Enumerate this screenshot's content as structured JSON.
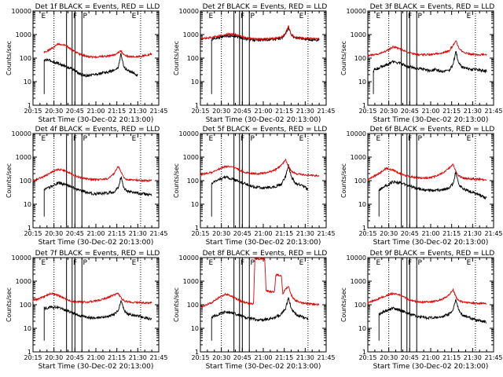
{
  "figure": {
    "xlabel": "Start Time (30-Dec-02 20:13:00)",
    "ylabel": "Counts/sec",
    "xtick_labels": [
      "20:15",
      "20:30",
      "20:45",
      "21:00",
      "21:15",
      "21:30",
      "21:45"
    ],
    "ytick_labels": [
      "1",
      "10",
      "100",
      "1000",
      "10000"
    ],
    "legend_text": "BLACK = Events, RED = LLD",
    "marker_labels": [
      "E",
      "F",
      "P",
      "E"
    ],
    "colors": {
      "events": "#000000",
      "lld": "#e00000",
      "axes": "#000000",
      "background": "#ffffff"
    }
  },
  "chart_data": [
    {
      "type": "line",
      "title": "Det 1f",
      "xlim_min": [
        2,
        92
      ],
      "ylim_log10": [
        0,
        4
      ],
      "markers_min": {
        "dotted": [
          17,
          79
        ],
        "solid": [
          26,
          30,
          32,
          37
        ]
      },
      "series": [
        {
          "name": "Events",
          "start": 10,
          "end": 77,
          "x": [
            10,
            12,
            15,
            20,
            25,
            30,
            35,
            40,
            45,
            50,
            55,
            60,
            63,
            65,
            67,
            70,
            73,
            75,
            77
          ],
          "y": [
            80,
            85,
            75,
            60,
            45,
            35,
            22,
            18,
            20,
            22,
            25,
            30,
            40,
            160,
            40,
            30,
            25,
            22,
            18
          ]
        },
        {
          "name": "LLD",
          "start": 10,
          "end": 87,
          "x": [
            10,
            15,
            20,
            25,
            30,
            35,
            40,
            45,
            50,
            55,
            60,
            63,
            65,
            67,
            70,
            75,
            80,
            87
          ],
          "y": [
            180,
            250,
            400,
            350,
            220,
            150,
            120,
            110,
            115,
            120,
            135,
            170,
            200,
            140,
            120,
            115,
            120,
            150
          ]
        }
      ]
    },
    {
      "type": "line",
      "title": "Det 2f",
      "xlim_min": [
        2,
        92
      ],
      "ylim_log10": [
        0,
        4
      ],
      "markers_min": {
        "dotted": [
          17,
          79
        ],
        "solid": [
          26,
          30,
          32,
          37
        ]
      },
      "series": [
        {
          "name": "Events",
          "start": 10,
          "end": 87,
          "x": [
            10,
            20,
            25,
            30,
            35,
            40,
            45,
            50,
            55,
            60,
            63,
            65,
            67,
            70,
            75,
            80,
            87
          ],
          "y": [
            650,
            850,
            900,
            750,
            650,
            600,
            600,
            600,
            620,
            700,
            1100,
            2100,
            900,
            700,
            650,
            620,
            600
          ]
        },
        {
          "name": "LLD",
          "start": 2,
          "end": 87,
          "x": [
            2,
            10,
            20,
            25,
            30,
            35,
            40,
            45,
            50,
            55,
            60,
            63,
            65,
            67,
            70,
            75,
            80,
            87
          ],
          "y": [
            650,
            750,
            1000,
            1050,
            900,
            700,
            650,
            640,
            650,
            680,
            750,
            1150,
            2300,
            1000,
            750,
            700,
            680,
            650
          ]
        }
      ]
    },
    {
      "type": "line",
      "title": "Det 3f",
      "xlim_min": [
        2,
        92
      ],
      "ylim_log10": [
        0,
        4
      ],
      "markers_min": {
        "dotted": [
          17,
          79
        ],
        "solid": [
          26,
          30,
          32,
          37
        ]
      },
      "series": [
        {
          "name": "Events",
          "start": 6,
          "end": 87,
          "x": [
            6,
            10,
            15,
            20,
            25,
            30,
            35,
            40,
            45,
            50,
            55,
            60,
            63,
            65,
            67,
            70,
            75,
            80,
            87
          ],
          "y": [
            30,
            40,
            50,
            70,
            60,
            45,
            38,
            35,
            30,
            32,
            28,
            30,
            50,
            200,
            60,
            40,
            35,
            32,
            28
          ]
        },
        {
          "name": "LLD",
          "start": 2,
          "end": 87,
          "x": [
            2,
            10,
            15,
            20,
            25,
            30,
            35,
            40,
            45,
            50,
            55,
            60,
            63,
            65,
            67,
            70,
            75,
            80,
            87
          ],
          "y": [
            130,
            150,
            200,
            300,
            250,
            180,
            150,
            140,
            140,
            150,
            165,
            200,
            350,
            550,
            280,
            180,
            150,
            140,
            140
          ]
        }
      ]
    },
    {
      "type": "line",
      "title": "Det 4f",
      "xlim_min": [
        2,
        92
      ],
      "ylim_log10": [
        0,
        4
      ],
      "markers_min": {
        "dotted": [
          17,
          79
        ],
        "solid": [
          26,
          30,
          32,
          37
        ]
      },
      "series": [
        {
          "name": "Events",
          "start": 10,
          "end": 87,
          "x": [
            10,
            15,
            20,
            25,
            30,
            35,
            40,
            45,
            50,
            55,
            60,
            63,
            65,
            67,
            70,
            75,
            80,
            87
          ],
          "y": [
            40,
            55,
            80,
            70,
            55,
            40,
            32,
            28,
            28,
            30,
            33,
            50,
            150,
            50,
            35,
            30,
            28,
            25
          ]
        },
        {
          "name": "LLD",
          "start": 2,
          "end": 87,
          "x": [
            2,
            10,
            15,
            20,
            25,
            30,
            35,
            40,
            45,
            50,
            55,
            60,
            63,
            65,
            67,
            70,
            75,
            80,
            87
          ],
          "y": [
            100,
            150,
            220,
            300,
            270,
            180,
            140,
            120,
            110,
            110,
            120,
            200,
            400,
            250,
            130,
            110,
            105,
            100,
            100
          ]
        }
      ]
    },
    {
      "type": "line",
      "title": "Det 5f",
      "xlim_min": [
        2,
        92
      ],
      "ylim_log10": [
        0,
        4
      ],
      "markers_min": {
        "dotted": [
          17,
          79
        ],
        "solid": [
          26,
          30,
          32,
          37
        ]
      },
      "series": [
        {
          "name": "Events",
          "start": 10,
          "end": 79,
          "x": [
            10,
            15,
            20,
            25,
            30,
            35,
            40,
            45,
            50,
            55,
            60,
            63,
            65,
            67,
            70,
            75,
            79
          ],
          "y": [
            80,
            110,
            140,
            120,
            90,
            70,
            55,
            50,
            50,
            55,
            70,
            150,
            450,
            150,
            80,
            60,
            45
          ]
        },
        {
          "name": "LLD",
          "start": 2,
          "end": 87,
          "x": [
            2,
            10,
            15,
            20,
            25,
            30,
            35,
            40,
            45,
            50,
            55,
            60,
            63,
            65,
            67,
            70,
            75,
            80,
            87
          ],
          "y": [
            180,
            220,
            300,
            400,
            380,
            280,
            220,
            200,
            200,
            220,
            280,
            450,
            750,
            400,
            250,
            200,
            180,
            170,
            160
          ]
        }
      ]
    },
    {
      "type": "line",
      "title": "Det 6f",
      "xlim_min": [
        2,
        92
      ],
      "ylim_log10": [
        0,
        4
      ],
      "markers_min": {
        "dotted": [
          17,
          79
        ],
        "solid": [
          26,
          30,
          32,
          37
        ]
      },
      "series": [
        {
          "name": "Events",
          "start": 10,
          "end": 87,
          "x": [
            10,
            15,
            20,
            25,
            30,
            35,
            40,
            45,
            50,
            55,
            60,
            63,
            65,
            67,
            70,
            75,
            80,
            87
          ],
          "y": [
            40,
            60,
            90,
            80,
            65,
            50,
            42,
            38,
            38,
            40,
            50,
            70,
            250,
            70,
            45,
            35,
            28,
            18
          ]
        },
        {
          "name": "LLD",
          "start": 2,
          "end": 87,
          "x": [
            2,
            10,
            15,
            20,
            25,
            30,
            35,
            40,
            45,
            50,
            55,
            60,
            63,
            65,
            67,
            70,
            75,
            80,
            87
          ],
          "y": [
            110,
            200,
            330,
            280,
            200,
            160,
            140,
            130,
            130,
            150,
            200,
            330,
            500,
            250,
            160,
            130,
            120,
            115,
            110
          ]
        }
      ]
    },
    {
      "type": "line",
      "title": "Det 7f",
      "xlim_min": [
        2,
        92
      ],
      "ylim_log10": [
        0,
        4
      ],
      "markers_min": {
        "dotted": [
          17,
          79
        ],
        "solid": [
          26,
          30,
          32,
          37
        ]
      },
      "series": [
        {
          "name": "Events",
          "start": 10,
          "end": 87,
          "x": [
            10,
            15,
            20,
            25,
            30,
            35,
            40,
            45,
            50,
            55,
            60,
            63,
            65,
            67,
            70,
            75,
            80,
            87
          ],
          "y": [
            70,
            80,
            75,
            60,
            45,
            35,
            30,
            28,
            28,
            30,
            40,
            60,
            150,
            60,
            40,
            35,
            30,
            25
          ]
        },
        {
          "name": "LLD",
          "start": 2,
          "end": 87,
          "x": [
            2,
            10,
            15,
            20,
            25,
            30,
            35,
            40,
            45,
            50,
            55,
            60,
            63,
            65,
            67,
            70,
            75,
            80,
            87
          ],
          "y": [
            150,
            220,
            300,
            250,
            180,
            140,
            130,
            130,
            140,
            160,
            200,
            260,
            300,
            200,
            150,
            130,
            125,
            120,
            120
          ]
        }
      ]
    },
    {
      "type": "line",
      "title": "Det 8f",
      "xlim_min": [
        2,
        92
      ],
      "ylim_log10": [
        0,
        4
      ],
      "markers_min": {
        "dotted": [
          17,
          79
        ],
        "solid": [
          26,
          30,
          32,
          37
        ]
      },
      "series": [
        {
          "name": "Events",
          "start": 10,
          "end": 79,
          "x": [
            10,
            15,
            20,
            25,
            30,
            35,
            40,
            45,
            50,
            55,
            60,
            63,
            65,
            67,
            70,
            75,
            79
          ],
          "y": [
            30,
            40,
            50,
            45,
            35,
            28,
            25,
            22,
            25,
            28,
            40,
            70,
            200,
            70,
            40,
            30,
            25
          ]
        },
        {
          "name": "LLD",
          "start": 2,
          "end": 87,
          "x": [
            2,
            10,
            15,
            20,
            25,
            30,
            35,
            40,
            41,
            45,
            48,
            49,
            52,
            55,
            56,
            58,
            60,
            61,
            63,
            65,
            67,
            70,
            75,
            80,
            87
          ],
          "y": [
            80,
            120,
            200,
            280,
            220,
            150,
            120,
            110,
            9000,
            9000,
            9000,
            400,
            350,
            350,
            1800,
            1800,
            1600,
            300,
            450,
            600,
            250,
            150,
            120,
            110,
            100
          ]
        }
      ]
    },
    {
      "type": "line",
      "title": "Det 9f",
      "xlim_min": [
        2,
        92
      ],
      "ylim_log10": [
        0,
        4
      ],
      "markers_min": {
        "dotted": [
          17,
          79
        ],
        "solid": [
          26,
          30,
          32,
          37
        ]
      },
      "series": [
        {
          "name": "Events",
          "start": 10,
          "end": 87,
          "x": [
            10,
            15,
            20,
            25,
            30,
            35,
            40,
            45,
            50,
            55,
            60,
            63,
            65,
            67,
            70,
            75,
            80,
            87
          ],
          "y": [
            40,
            55,
            70,
            60,
            45,
            35,
            30,
            28,
            28,
            30,
            40,
            60,
            180,
            60,
            35,
            28,
            22,
            18
          ]
        },
        {
          "name": "LLD",
          "start": 2,
          "end": 87,
          "x": [
            2,
            10,
            15,
            20,
            25,
            30,
            35,
            40,
            45,
            50,
            55,
            60,
            63,
            65,
            67,
            70,
            75,
            80,
            87
          ],
          "y": [
            120,
            180,
            250,
            300,
            260,
            180,
            140,
            130,
            130,
            140,
            170,
            250,
            450,
            220,
            150,
            130,
            120,
            115,
            110
          ]
        }
      ]
    }
  ]
}
